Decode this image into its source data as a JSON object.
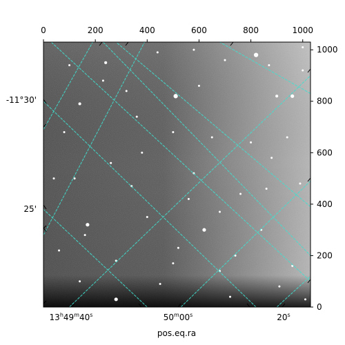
{
  "chart_data": {
    "type": "heatmap",
    "description_kind": "astronomical image with celestial coordinate grid overlay",
    "colormap": "grayscale",
    "grid_color": "#40e0d0",
    "grid": true,
    "xlabel": "pos.eq.ra",
    "pixel_axes": {
      "x": {
        "range": [
          0,
          1030
        ],
        "ticks": [
          0,
          200,
          400,
          600,
          800,
          1000
        ],
        "labels": [
          "0",
          "200",
          "400",
          "600",
          "800",
          "1000"
        ]
      },
      "y": {
        "range": [
          0,
          1030
        ],
        "ticks": [
          0,
          200,
          400,
          600,
          800,
          1000
        ],
        "labels": [
          "0",
          "200",
          "400",
          "600",
          "800",
          "1000"
        ]
      }
    },
    "world_axes": {
      "ra": {
        "labels": [
          "13h49m40s",
          "50m00s",
          "20s"
        ],
        "label_parts": [
          {
            "main": "13",
            "sup1": "h",
            "mid": "49",
            "sup2": "m",
            "end": "40",
            "sup3": "s"
          },
          {
            "main": "50",
            "sup1": "m",
            "mid": "00",
            "sup2": "s",
            "end": "",
            "sup3": ""
          },
          {
            "main": "20",
            "sup1": "s",
            "mid": "",
            "sup2": "",
            "end": "",
            "sup3": ""
          }
        ]
      },
      "dec": {
        "labels": [
          "-11°30'",
          "25'"
        ]
      }
    },
    "grid_lines": {
      "family_a": [
        {
          "from": [
            0,
            280
          ],
          "to": [
            390,
            1030
          ]
        },
        {
          "from": [
            0,
            690
          ],
          "to": [
            190,
            1030
          ]
        },
        {
          "from": [
            100,
            0
          ],
          "to": [
            1030,
            900
          ]
        },
        {
          "from": [
            530,
            0
          ],
          "to": [
            1030,
            490
          ]
        },
        {
          "from": [
            900,
            0
          ],
          "to": [
            1030,
            120
          ]
        },
        {
          "from": [
            230,
            1030
          ],
          "to": [
            1030,
            200
          ]
        }
      ],
      "family_b": [
        {
          "from": [
            400,
            0
          ],
          "to": [
            0,
            380
          ]
        },
        {
          "from": [
            820,
            0
          ],
          "to": [
            0,
            800
          ]
        },
        {
          "from": [
            1030,
            390
          ],
          "to": [
            280,
            1030
          ]
        },
        {
          "from": [
            1030,
            830
          ],
          "to": [
            680,
            1030
          ]
        },
        {
          "from": [
            30,
            1030
          ],
          "to": [
            1030,
            100
          ]
        }
      ]
    },
    "stars": [
      [
        820,
        980,
        5
      ],
      [
        240,
        950,
        3
      ],
      [
        510,
        820,
        5
      ],
      [
        960,
        820,
        4
      ],
      [
        900,
        820,
        3
      ],
      [
        140,
        790,
        3
      ],
      [
        320,
        840,
        2
      ],
      [
        440,
        990,
        2
      ],
      [
        700,
        960,
        2
      ],
      [
        870,
        940,
        2
      ],
      [
        1000,
        1010,
        2
      ],
      [
        260,
        560,
        2
      ],
      [
        580,
        1000,
        2
      ],
      [
        360,
        740,
        2
      ],
      [
        500,
        680,
        2
      ],
      [
        650,
        660,
        2
      ],
      [
        800,
        640,
        2
      ],
      [
        940,
        660,
        2
      ],
      [
        80,
        680,
        2
      ],
      [
        120,
        500,
        2
      ],
      [
        340,
        470,
        2
      ],
      [
        580,
        520,
        2
      ],
      [
        760,
        440,
        2
      ],
      [
        880,
        580,
        2
      ],
      [
        990,
        480,
        2
      ],
      [
        170,
        320,
        4
      ],
      [
        620,
        300,
        4
      ],
      [
        160,
        280,
        2
      ],
      [
        400,
        350,
        2
      ],
      [
        520,
        230,
        2
      ],
      [
        840,
        300,
        2
      ],
      [
        960,
        160,
        2
      ],
      [
        280,
        180,
        2
      ],
      [
        140,
        100,
        2
      ],
      [
        450,
        90,
        2
      ],
      [
        680,
        140,
        2
      ],
      [
        910,
        80,
        2
      ],
      [
        1010,
        30,
        2
      ],
      [
        280,
        30,
        4
      ],
      [
        500,
        170,
        2
      ],
      [
        740,
        200,
        2
      ],
      [
        40,
        500,
        2
      ],
      [
        60,
        220,
        2
      ],
      [
        560,
        420,
        2
      ],
      [
        720,
        40,
        2
      ],
      [
        380,
        600,
        2
      ],
      [
        680,
        370,
        2
      ],
      [
        860,
        460,
        2
      ],
      [
        230,
        880,
        2
      ],
      [
        600,
        860,
        2
      ],
      [
        1000,
        920,
        2
      ],
      [
        100,
        940,
        2
      ]
    ]
  }
}
